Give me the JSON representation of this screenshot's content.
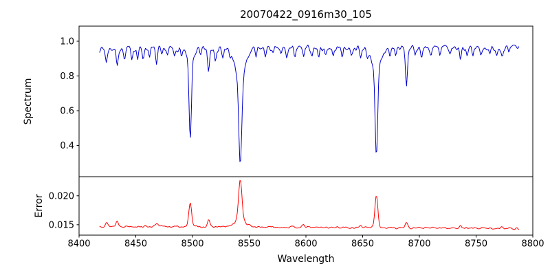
{
  "figure": {
    "title": "20070422_0916m30_105",
    "xlabel": "Wavelength",
    "background": "#ffffff",
    "text_color": "#000000",
    "spine_color": "#000000"
  },
  "x_axis": {
    "lim": [
      8400,
      8800
    ],
    "ticks": [
      8400,
      8450,
      8500,
      8550,
      8600,
      8650,
      8700,
      8750,
      8800
    ],
    "tick_labels": [
      "8400",
      "8450",
      "8500",
      "8550",
      "8600",
      "8650",
      "8700",
      "8750",
      "8800"
    ]
  },
  "chart_data": [
    {
      "type": "line",
      "name": "spectrum",
      "ylabel": "Spectrum",
      "color": "#0000cc",
      "legend": "none",
      "grid": false,
      "ylim": [
        0.22,
        1.087
      ],
      "yticks": [
        0.4,
        0.6,
        0.8,
        1.0
      ],
      "ytick_labels": [
        "0.4",
        "0.6",
        "0.8",
        "1.0"
      ],
      "x_start": 8418,
      "x_end": 8788,
      "x_step": 0.75,
      "baseline_start": 0.956,
      "baseline_end": 0.963,
      "noise_amp": 0.022,
      "features": [
        [
          8498.0,
          -0.45,
          1.0
        ],
        [
          8498.0,
          -0.08,
          3.0
        ],
        [
          8542.1,
          -0.5,
          1.3
        ],
        [
          8542.1,
          -0.17,
          4.5
        ],
        [
          8662.1,
          -0.52,
          1.1
        ],
        [
          8662.1,
          -0.12,
          4.0
        ],
        [
          8688.6,
          -0.22,
          0.9
        ],
        [
          8514.1,
          -0.13,
          0.9
        ],
        [
          8424.1,
          -0.08,
          0.8
        ],
        [
          8433.6,
          -0.1,
          0.8
        ],
        [
          8440.1,
          -0.07,
          0.8
        ],
        [
          8446.6,
          -0.05,
          0.7
        ],
        [
          8451.6,
          -0.06,
          0.7
        ],
        [
          8456.4,
          -0.05,
          0.7
        ],
        [
          8462.1,
          -0.04,
          0.7
        ],
        [
          8468.4,
          -0.09,
          0.8
        ],
        [
          8473.0,
          -0.05,
          0.7
        ],
        [
          8478.0,
          -0.04,
          0.7
        ],
        [
          8484.1,
          -0.05,
          0.7
        ],
        [
          8490.1,
          -0.04,
          0.7
        ],
        [
          8507.1,
          -0.05,
          0.7
        ],
        [
          8520.1,
          -0.06,
          0.7
        ],
        [
          8526.9,
          -0.05,
          0.7
        ],
        [
          8533.1,
          -0.04,
          0.7
        ],
        [
          8556.1,
          -0.05,
          0.7
        ],
        [
          8564.1,
          -0.04,
          0.7
        ],
        [
          8571.1,
          -0.04,
          0.7
        ],
        [
          8578.1,
          -0.04,
          0.7
        ],
        [
          8583.1,
          -0.06,
          0.7
        ],
        [
          8590.1,
          -0.04,
          0.7
        ],
        [
          8598.1,
          -0.06,
          0.7
        ],
        [
          8605.1,
          -0.04,
          0.7
        ],
        [
          8611.1,
          -0.05,
          0.7
        ],
        [
          8617.1,
          -0.04,
          0.7
        ],
        [
          8624.1,
          -0.05,
          0.7
        ],
        [
          8632.1,
          -0.04,
          0.7
        ],
        [
          8640.1,
          -0.04,
          0.7
        ],
        [
          8648.1,
          -0.06,
          0.7
        ],
        [
          8654.1,
          -0.04,
          0.7
        ],
        [
          8674.1,
          -0.05,
          0.7
        ],
        [
          8679.1,
          -0.04,
          0.7
        ],
        [
          8696.1,
          -0.04,
          0.7
        ],
        [
          8702.1,
          -0.05,
          0.7
        ],
        [
          8710.1,
          -0.04,
          0.7
        ],
        [
          8718.1,
          -0.05,
          0.7
        ],
        [
          8727.1,
          -0.04,
          0.7
        ],
        [
          8736.1,
          -0.06,
          0.7
        ],
        [
          8742.1,
          -0.04,
          0.7
        ],
        [
          8747.1,
          -0.05,
          0.7
        ],
        [
          8754.1,
          -0.04,
          0.7
        ],
        [
          8762.1,
          -0.05,
          0.7
        ],
        [
          8768.1,
          -0.04,
          0.7
        ],
        [
          8773.1,
          -0.05,
          0.7
        ],
        [
          8779.1,
          -0.04,
          0.7
        ]
      ]
    },
    {
      "type": "line",
      "name": "error",
      "ylabel": "Error",
      "color": "#ff0000",
      "legend": "none",
      "grid": false,
      "ylim": [
        0.0132,
        0.0233
      ],
      "yticks": [
        0.015,
        0.02
      ],
      "ytick_labels": [
        "0.015",
        "0.020"
      ],
      "x_start": 8418,
      "x_end": 8788,
      "x_step": 0.75,
      "baseline_start": 0.01475,
      "baseline_end": 0.01435,
      "noise_amp": 0.00022,
      "features": [
        [
          8498.0,
          0.0043,
          1.2
        ],
        [
          8542.1,
          0.0072,
          1.5
        ],
        [
          8542.1,
          0.001,
          5.0
        ],
        [
          8662.1,
          0.0056,
          1.3
        ],
        [
          8424.1,
          0.0006,
          1.0
        ],
        [
          8433.6,
          0.0009,
          1.0
        ],
        [
          8468.4,
          0.0005,
          1.0
        ],
        [
          8514.1,
          0.0012,
          1.0
        ],
        [
          8598.1,
          0.0004,
          1.0
        ],
        [
          8648.1,
          0.0004,
          1.0
        ],
        [
          8688.6,
          0.001,
          1.0
        ],
        [
          8736.1,
          0.0005,
          1.0
        ],
        [
          8773.1,
          0.0004,
          1.0
        ]
      ]
    }
  ]
}
